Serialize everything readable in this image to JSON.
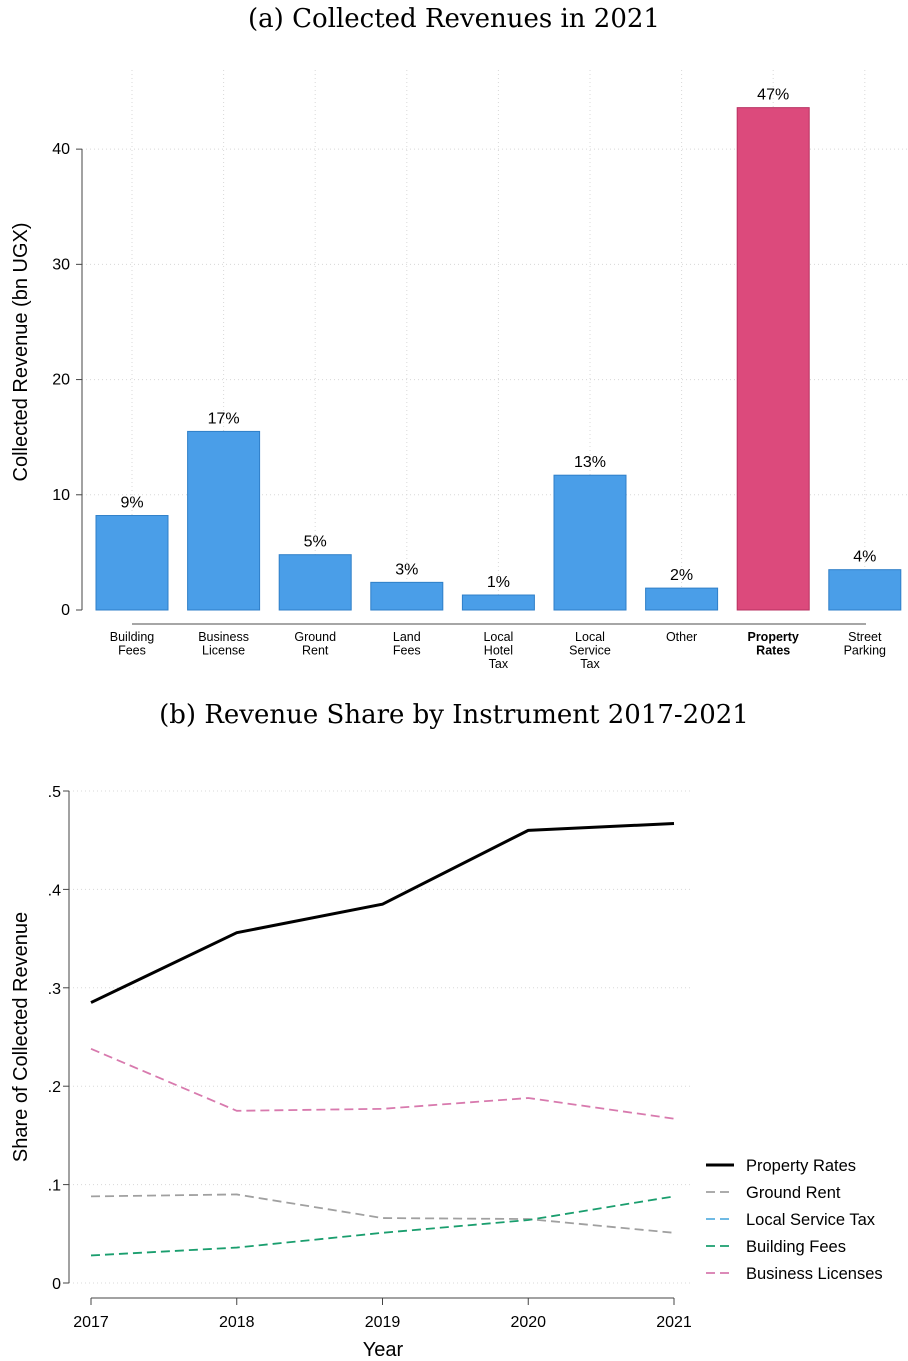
{
  "chart_data": [
    {
      "type": "bar",
      "title": "(a) Collected Revenues in 2021",
      "ylabel": "Collected Revenue (bn UGX)",
      "xlabel": "",
      "ylim": [
        0,
        46
      ],
      "yticks": [
        "0",
        "10",
        "20",
        "30",
        "40"
      ],
      "ytick_values": [
        0,
        10,
        20,
        30,
        40
      ],
      "grid": true,
      "categories": [
        [
          "Building",
          "Fees"
        ],
        [
          "Business",
          "License"
        ],
        [
          "Ground",
          "Rent"
        ],
        [
          "Land",
          "Fees"
        ],
        [
          "Local",
          "Hotel",
          "Tax"
        ],
        [
          "Local",
          "Service",
          "Tax"
        ],
        [
          "Other"
        ],
        [
          "Property",
          "Rates"
        ],
        [
          "Street",
          "Parking"
        ]
      ],
      "values": [
        8.2,
        15.5,
        4.8,
        2.4,
        1.3,
        11.7,
        1.9,
        43.6,
        3.5
      ],
      "labels": [
        "9%",
        "17%",
        "5%",
        "3%",
        "1%",
        "13%",
        "2%",
        "47%",
        "4%"
      ],
      "highlight_index": 7,
      "colors": {
        "bar": "#4a9ee8",
        "highlight": "#dc4a7c",
        "bar_edge": "#2f7fc8",
        "highlight_edge": "#b83060"
      }
    },
    {
      "type": "line",
      "title": "(b) Revenue Share by Instrument 2017-2021",
      "ylabel": "Share of Collected Revenue",
      "xlabel": "Year",
      "x": [
        2017,
        2018,
        2019,
        2020,
        2021
      ],
      "xticks": [
        "2017",
        "2018",
        "2019",
        "2020",
        "2021"
      ],
      "ylim": [
        0,
        0.5
      ],
      "yticks": [
        "0",
        ".1",
        ".2",
        ".3",
        ".4",
        ".5"
      ],
      "ytick_values": [
        0,
        0.1,
        0.2,
        0.3,
        0.4,
        0.5
      ],
      "grid": true,
      "legend_position": "right",
      "series": [
        {
          "name": "Property Rates",
          "values": [
            0.285,
            0.356,
            0.385,
            0.46,
            0.467
          ],
          "color": "#000000",
          "dash": "solid"
        },
        {
          "name": "Ground Rent",
          "values": [
            0.088,
            0.09,
            0.066,
            0.065,
            0.051
          ],
          "color": "#a0a0a0",
          "dash": "dashed"
        },
        {
          "name": "Local Service Tax",
          "values": [
            null,
            null,
            null,
            null,
            null
          ],
          "color": "#5bb0e0",
          "dash": "dashed"
        },
        {
          "name": "Building Fees",
          "values": [
            0.028,
            0.036,
            0.051,
            0.064,
            0.088
          ],
          "color": "#1a9e6e",
          "dash": "dashed"
        },
        {
          "name": "Business Licenses",
          "values": [
            0.238,
            0.175,
            0.177,
            0.188,
            0.167
          ],
          "color": "#d87aae",
          "dash": "dashed"
        }
      ]
    }
  ]
}
